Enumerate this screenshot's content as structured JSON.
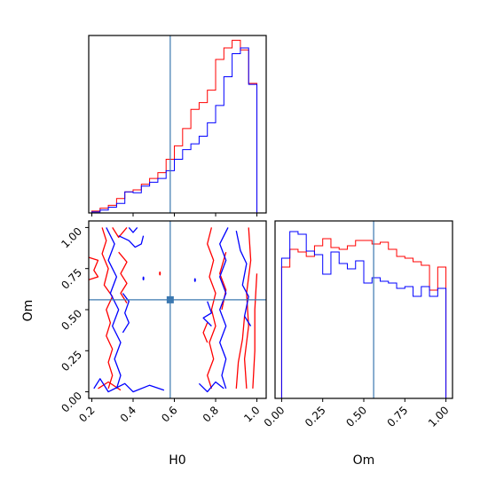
{
  "chart_data": {
    "type": "corner",
    "parameters": [
      "H0",
      "Om"
    ],
    "axis_labels": {
      "x_left": "H0",
      "x_right": "Om",
      "y_left": "Om"
    },
    "truth": {
      "H0": 0.58,
      "Om": 0.56
    },
    "truth_color": "#3b78b0",
    "colors": {
      "red": "#ff0000",
      "blue": "#0000ff"
    },
    "ranges": {
      "H0": [
        0.185,
        1.045
      ],
      "Om": [
        -0.04,
        1.04
      ]
    },
    "ticks": {
      "H0": {
        "values": [
          0.2,
          0.4,
          0.6,
          0.8,
          1.0
        ],
        "labels": [
          "0.2",
          "0.4",
          "0.6",
          "0.8",
          "1.0"
        ]
      },
      "Om_y": {
        "values": [
          0.0,
          0.25,
          0.5,
          0.75,
          1.0
        ],
        "labels": [
          "0.00",
          "0.25",
          "0.50",
          "0.75",
          "1.00"
        ]
      },
      "Om_x": {
        "values": [
          0.0,
          0.25,
          0.5,
          0.75,
          1.0
        ],
        "labels": [
          "0.00",
          "0.25",
          "0.50",
          "0.75",
          "1.00"
        ]
      }
    },
    "hist_H0": {
      "edges": [
        0.2,
        0.24,
        0.28,
        0.32,
        0.36,
        0.4,
        0.44,
        0.48,
        0.52,
        0.56,
        0.6,
        0.64,
        0.68,
        0.72,
        0.76,
        0.8,
        0.84,
        0.88,
        0.92,
        0.96,
        1.0
      ],
      "ymax": 185,
      "series": [
        {
          "color": "red",
          "values": [
            2,
            5,
            8,
            15,
            22,
            24,
            30,
            36,
            42,
            56,
            70,
            88,
            108,
            115,
            128,
            160,
            172,
            180,
            170,
            135
          ]
        },
        {
          "color": "blue",
          "values": [
            1,
            3,
            6,
            10,
            22,
            21,
            28,
            32,
            36,
            44,
            56,
            66,
            72,
            80,
            94,
            112,
            142,
            166,
            172,
            134
          ]
        }
      ]
    },
    "hist_Om": {
      "edges": [
        0.0,
        0.05,
        0.1,
        0.15,
        0.2,
        0.25,
        0.3,
        0.35,
        0.4,
        0.45,
        0.5,
        0.55,
        0.6,
        0.65,
        0.7,
        0.75,
        0.8,
        0.85,
        0.9,
        0.95,
        1.0
      ],
      "ymax": 200,
      "series": [
        {
          "color": "red",
          "values": [
            148,
            168,
            165,
            160,
            172,
            180,
            170,
            168,
            172,
            178,
            178,
            174,
            176,
            168,
            160,
            158,
            154,
            150,
            122,
            148
          ]
        },
        {
          "color": "blue",
          "values": [
            158,
            188,
            185,
            166,
            162,
            140,
            165,
            152,
            146,
            155,
            130,
            136,
            132,
            130,
            124,
            126,
            115,
            126,
            115,
            124
          ]
        }
      ]
    },
    "contours": {
      "red": [
        [
          [
            0.25,
            1.0
          ],
          [
            0.27,
            0.92
          ],
          [
            0.25,
            0.84
          ],
          [
            0.28,
            0.75
          ],
          [
            0.26,
            0.65
          ],
          [
            0.3,
            0.58
          ],
          [
            0.27,
            0.5
          ],
          [
            0.29,
            0.42
          ],
          [
            0.27,
            0.34
          ],
          [
            0.3,
            0.26
          ],
          [
            0.28,
            0.18
          ],
          [
            0.3,
            0.1
          ],
          [
            0.28,
            0.02
          ]
        ],
        [
          [
            0.3,
            1.0
          ],
          [
            0.33,
            0.94
          ],
          [
            0.37,
            1.0
          ]
        ],
        [
          [
            0.33,
            0.85
          ],
          [
            0.37,
            0.79
          ],
          [
            0.34,
            0.72
          ],
          [
            0.37,
            0.66
          ],
          [
            0.34,
            0.6
          ],
          [
            0.37,
            0.54
          ]
        ],
        [
          [
            0.18,
            0.82
          ],
          [
            0.23,
            0.8
          ],
          [
            0.21,
            0.74
          ],
          [
            0.23,
            0.7
          ],
          [
            0.18,
            0.68
          ]
        ],
        [
          [
            0.23,
            0.02
          ],
          [
            0.28,
            0.06
          ],
          [
            0.34,
            0.01
          ]
        ],
        [
          [
            0.78,
            1.0
          ],
          [
            0.76,
            0.9
          ],
          [
            0.79,
            0.8
          ],
          [
            0.77,
            0.7
          ],
          [
            0.8,
            0.6
          ],
          [
            0.78,
            0.5
          ],
          [
            0.8,
            0.4
          ],
          [
            0.77,
            0.3
          ],
          [
            0.79,
            0.2
          ],
          [
            0.76,
            0.1
          ],
          [
            0.78,
            0.02
          ]
        ],
        [
          [
            0.85,
            0.85
          ],
          [
            0.82,
            0.72
          ],
          [
            0.85,
            0.62
          ],
          [
            0.83,
            0.5
          ]
        ],
        [
          [
            0.76,
            0.42
          ],
          [
            0.74,
            0.36
          ],
          [
            0.76,
            0.3
          ]
        ],
        [
          [
            0.95,
            0.02
          ],
          [
            0.94,
            0.2
          ],
          [
            0.96,
            0.4
          ],
          [
            0.95,
            0.6
          ],
          [
            0.97,
            0.8
          ],
          [
            0.96,
            1.0
          ]
        ],
        [
          [
            0.9,
            0.02
          ],
          [
            0.91,
            0.18
          ],
          [
            0.93,
            0.32
          ],
          [
            0.94,
            0.46
          ]
        ],
        [
          [
            0.98,
            0.02
          ],
          [
            0.99,
            0.25
          ],
          [
            0.99,
            0.5
          ],
          [
            1.0,
            0.72
          ]
        ]
      ],
      "blue": [
        [
          [
            0.21,
            0.02
          ],
          [
            0.24,
            0.08
          ],
          [
            0.28,
            0.0
          ],
          [
            0.36,
            0.05
          ],
          [
            0.4,
            0.0
          ],
          [
            0.48,
            0.04
          ],
          [
            0.55,
            0.01
          ]
        ],
        [
          [
            0.27,
            1.0
          ],
          [
            0.31,
            0.9
          ],
          [
            0.28,
            0.8
          ],
          [
            0.32,
            0.7
          ],
          [
            0.29,
            0.6
          ],
          [
            0.33,
            0.5
          ],
          [
            0.3,
            0.4
          ],
          [
            0.34,
            0.3
          ],
          [
            0.31,
            0.2
          ],
          [
            0.34,
            0.1
          ],
          [
            0.32,
            0.02
          ]
        ],
        [
          [
            0.33,
            0.95
          ],
          [
            0.38,
            0.92
          ],
          [
            0.41,
            0.88
          ],
          [
            0.44,
            0.9
          ],
          [
            0.45,
            0.95
          ]
        ],
        [
          [
            0.38,
            1.0
          ],
          [
            0.4,
            0.97
          ],
          [
            0.42,
            1.0
          ]
        ],
        [
          [
            0.35,
            0.6
          ],
          [
            0.38,
            0.55
          ],
          [
            0.36,
            0.48
          ],
          [
            0.38,
            0.42
          ],
          [
            0.35,
            0.36
          ]
        ],
        [
          [
            0.86,
            1.0
          ],
          [
            0.82,
            0.9
          ],
          [
            0.85,
            0.8
          ],
          [
            0.82,
            0.7
          ],
          [
            0.85,
            0.6
          ],
          [
            0.82,
            0.5
          ],
          [
            0.85,
            0.4
          ],
          [
            0.82,
            0.3
          ],
          [
            0.85,
            0.2
          ],
          [
            0.83,
            0.1
          ],
          [
            0.85,
            0.02
          ]
        ],
        [
          [
            0.9,
            0.98
          ],
          [
            0.92,
            0.86
          ],
          [
            0.95,
            0.78
          ],
          [
            0.93,
            0.65
          ],
          [
            0.96,
            0.58
          ],
          [
            0.94,
            0.46
          ],
          [
            0.97,
            0.4
          ]
        ],
        [
          [
            0.78,
            0.4
          ],
          [
            0.74,
            0.45
          ],
          [
            0.78,
            0.48
          ],
          [
            0.76,
            0.55
          ]
        ],
        [
          [
            0.72,
            0.05
          ],
          [
            0.76,
            0.0
          ],
          [
            0.8,
            0.06
          ],
          [
            0.84,
            0.02
          ]
        ]
      ]
    },
    "dots": {
      "red": [
        [
          0.53,
          0.72
        ]
      ],
      "blue": [
        [
          0.45,
          0.69
        ],
        [
          0.7,
          0.68
        ]
      ]
    }
  }
}
